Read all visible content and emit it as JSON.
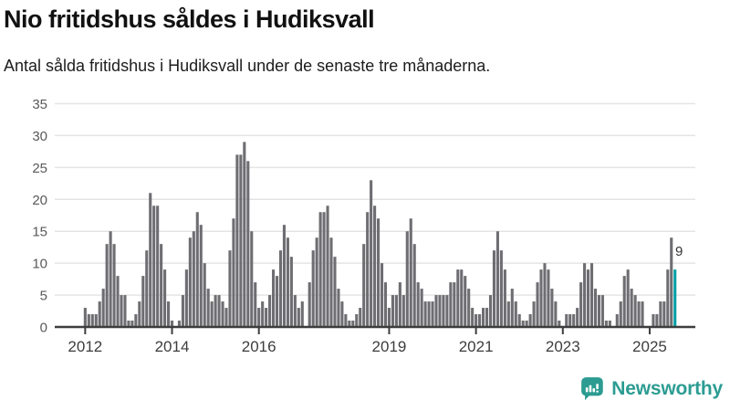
{
  "header": {
    "title": "Nio fritidshus såldes i Hudiksvall",
    "subtitle": "Antal sålda fritidshus i Hudiksvall under de senaste tre månaderna."
  },
  "chart_data": {
    "type": "bar",
    "title": "Nio fritidshus såldes i Hudiksvall",
    "subtitle": "Antal sålda fritidshus i Hudiksvall under de senaste tre månaderna.",
    "frequency": "monthly",
    "x_start": "2012-01",
    "x_end": "2025-08",
    "ylim": [
      0,
      35
    ],
    "yticks": [
      0,
      5,
      10,
      15,
      20,
      25,
      30,
      35
    ],
    "xticks": [
      {
        "label": "2012",
        "month_index": 0
      },
      {
        "label": "2014",
        "month_index": 24
      },
      {
        "label": "2016",
        "month_index": 48
      },
      {
        "label": "2019",
        "month_index": 84
      },
      {
        "label": "2021",
        "month_index": 108
      },
      {
        "label": "2023",
        "month_index": 132
      },
      {
        "label": "2025",
        "month_index": 156
      }
    ],
    "values": [
      3,
      2,
      2,
      2,
      4,
      6,
      13,
      15,
      13,
      8,
      5,
      5,
      1,
      1,
      2,
      4,
      8,
      12,
      21,
      19,
      19,
      13,
      9,
      4,
      1,
      0,
      1,
      5,
      9,
      14,
      15,
      18,
      16,
      10,
      6,
      4,
      5,
      5,
      4,
      3,
      12,
      17,
      27,
      27,
      29,
      26,
      15,
      7,
      3,
      4,
      3,
      5,
      9,
      8,
      12,
      16,
      14,
      11,
      5,
      3,
      4,
      0,
      7,
      12,
      14,
      18,
      18,
      19,
      14,
      11,
      6,
      4,
      2,
      1,
      1,
      2,
      3,
      13,
      18,
      23,
      19,
      17,
      10,
      7,
      3,
      5,
      5,
      7,
      5,
      15,
      17,
      13,
      7,
      6,
      4,
      4,
      4,
      5,
      5,
      5,
      5,
      7,
      7,
      9,
      9,
      8,
      6,
      3,
      2,
      2,
      3,
      3,
      5,
      12,
      15,
      12,
      9,
      4,
      6,
      4,
      2,
      1,
      1,
      2,
      4,
      7,
      9,
      10,
      9,
      6,
      4,
      1,
      0,
      2,
      2,
      2,
      3,
      7,
      10,
      9,
      10,
      6,
      5,
      5,
      1,
      1,
      0,
      2,
      4,
      8,
      9,
      6,
      5,
      4,
      4,
      0,
      0,
      2,
      2,
      4,
      4,
      9,
      14,
      9
    ],
    "highlight": {
      "index": 163,
      "label": "9",
      "color": "#00a0a5"
    },
    "bar_color": "#6e6e72",
    "grid": true,
    "legend": false,
    "gridline_color": "#e4e4e4",
    "axis_color": "#3d3d3d"
  },
  "footer": {
    "brand": "Newsworthy",
    "brand_color": "#2c9c92",
    "logo_icon": "newsworthy-speech-bubble-chart-icon"
  }
}
